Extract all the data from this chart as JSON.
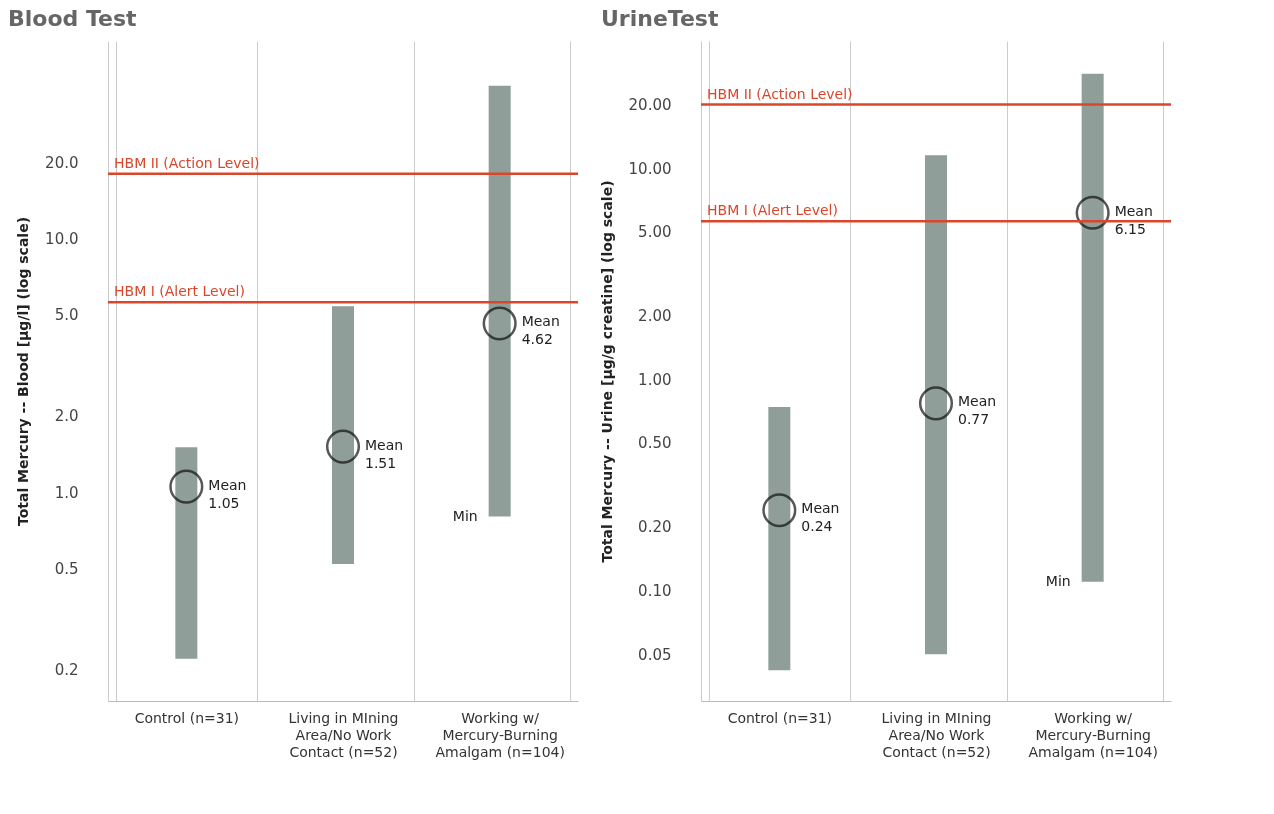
{
  "chart_data": [
    {
      "type": "bar",
      "title": "Blood Test",
      "ylabel": "Total Mercury -- Blood [µg/l] (log scale)",
      "categories": [
        "Control (n=31)",
        "Living in MIning\nArea/No Work\nContact (n=52)",
        "Working w/\nMercury-Burning\nAmalgam (n=104)"
      ],
      "series": [
        {
          "color": "#8f9e98",
          "values": [
            1.28,
            4.88,
            39.2
          ],
          "base": [
            0.22,
            0.52,
            0.8
          ]
        },
        {
          "type": "scatter",
          "color": "#111111",
          "values": [
            1.05,
            1.51,
            4.62
          ]
        }
      ],
      "log": true,
      "ylim": [
        0.15,
        60
      ],
      "yticks": [
        {
          "value": 0.2,
          "label": "0.2"
        },
        {
          "value": 0.5,
          "label": "0.5"
        },
        {
          "value": 1,
          "label": "1.0"
        },
        {
          "value": 2,
          "label": "2.0"
        },
        {
          "value": 5,
          "label": "5.0"
        },
        {
          "value": 10,
          "label": "10.0"
        },
        {
          "value": 20,
          "label": "20.0"
        }
      ],
      "ref_lines": [
        {
          "axis": "y",
          "value": 18,
          "label": "HBM II (Action Level)",
          "color": "#d9472b"
        },
        {
          "axis": "y",
          "value": 5.6,
          "label": "HBM I (Alert Level)",
          "color": "#d9472b"
        }
      ],
      "annotations": [
        "Mean\n1.05",
        "Mean\n1.51",
        "Mean\n4.62",
        "Min"
      ],
      "marker": "circle",
      "grid": "x"
    },
    {
      "type": "bar",
      "title": "UrineTest",
      "ylabel": "Total Mercury -- Urine [µg/g creatine] (log scale)",
      "categories": [
        "Control (n=31)",
        "Living in MIning\nArea/No Work\nContact (n=52)",
        "Working w/\nMercury-Burning\nAmalgam (n=104)"
      ],
      "series": [
        {
          "color": "#8f9e98",
          "values": [
            0.698,
            11.45,
            27.89
          ],
          "base": [
            0.042,
            0.05,
            0.11
          ]
        },
        {
          "type": "scatter",
          "color": "#111111",
          "values": [
            0.24,
            0.77,
            6.15
          ]
        }
      ],
      "log": true,
      "ylim": [
        0.03,
        40
      ],
      "yticks": [
        {
          "value": 0.05,
          "label": "0.05"
        },
        {
          "value": 0.1,
          "label": "0.10"
        },
        {
          "value": 0.2,
          "label": "0.20"
        },
        {
          "value": 0.5,
          "label": "0.50"
        },
        {
          "value": 1,
          "label": "1.00"
        },
        {
          "value": 2,
          "label": "2.00"
        },
        {
          "value": 5,
          "label": "5.00"
        },
        {
          "value": 10,
          "label": "10.00"
        },
        {
          "value": 20,
          "label": "20.00"
        }
      ],
      "ref_lines": [
        {
          "axis": "y",
          "value": 20,
          "label": "HBM II (Action Level)",
          "color": "#d9472b"
        },
        {
          "axis": "y",
          "value": 5.6,
          "label": "HBM I (Alert Level)",
          "color": "#d9472b"
        }
      ],
      "annotations": [
        "Mean\n0.24",
        "Mean\n0.77",
        "Mean\n6.15",
        "Min"
      ],
      "marker": "circle",
      "grid": "x"
    }
  ]
}
